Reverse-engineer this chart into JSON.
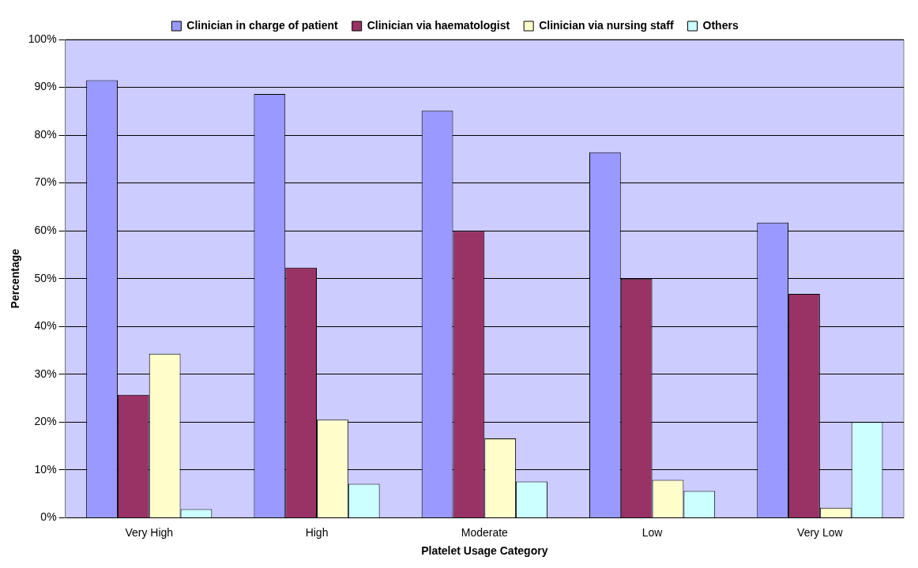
{
  "chart_data": {
    "type": "bar",
    "xlabel": "Platelet Usage Category",
    "ylabel": "Percentage",
    "categories": [
      "Very High",
      "High",
      "Moderate",
      "Low",
      "Very Low"
    ],
    "series": [
      {
        "name": "Clinician in charge of patient",
        "color": "#9999ff",
        "values": [
          91.5,
          88.6,
          85.1,
          76.4,
          61.7
        ]
      },
      {
        "name": "Clinician via haematologist",
        "color": "#993366",
        "values": [
          25.7,
          52.3,
          60.0,
          50.0,
          46.8
        ]
      },
      {
        "name": "Clinician via nursing staff",
        "color": "#ffffcc",
        "values": [
          34.3,
          20.5,
          16.6,
          7.9,
          2.1
        ]
      },
      {
        "name": "Others",
        "color": "#ccffff",
        "values": [
          1.8,
          7.1,
          7.6,
          5.6,
          20.0
        ]
      }
    ],
    "ylim": [
      0,
      100
    ],
    "yticks": [
      {
        "value": 0,
        "label": "0%"
      },
      {
        "value": 10,
        "label": "10%"
      },
      {
        "value": 20,
        "label": "20%"
      },
      {
        "value": 30,
        "label": "30%"
      },
      {
        "value": 40,
        "label": "40%"
      },
      {
        "value": 50,
        "label": "50%"
      },
      {
        "value": 60,
        "label": "60%"
      },
      {
        "value": 70,
        "label": "70%"
      },
      {
        "value": 80,
        "label": "80%"
      },
      {
        "value": 90,
        "label": "90%"
      },
      {
        "value": 100,
        "label": "100%"
      }
    ],
    "grid": "y",
    "legend": "top"
  }
}
